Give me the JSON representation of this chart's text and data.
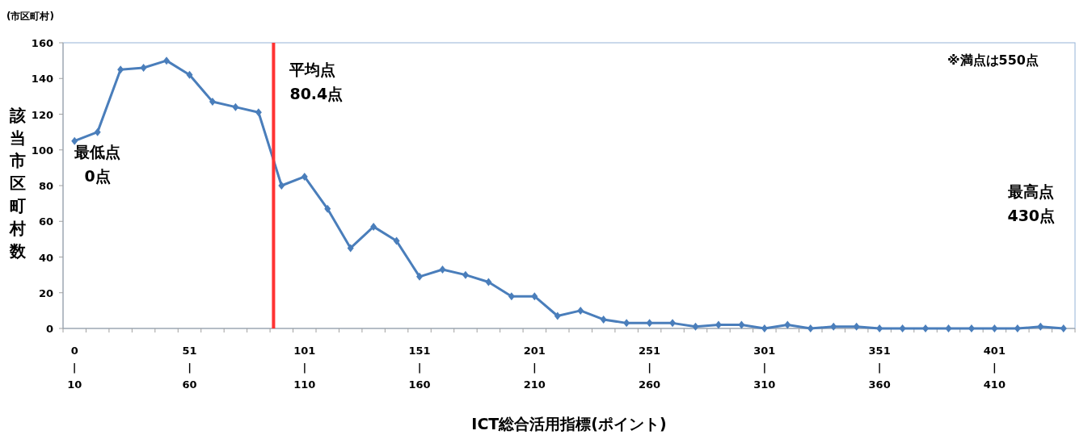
{
  "chart_data": {
    "type": "line",
    "categories": [
      "0\n|\n10",
      null,
      null,
      null,
      null,
      "51\n|\n60",
      null,
      null,
      null,
      null,
      "101\n|\n110",
      null,
      null,
      null,
      null,
      "151\n|\n160",
      null,
      null,
      null,
      null,
      "201\n|\n210",
      null,
      null,
      null,
      null,
      "251\n|\n260",
      null,
      null,
      null,
      null,
      "301\n|\n310",
      null,
      null,
      null,
      null,
      "351\n|\n360",
      null,
      null,
      null,
      null,
      "401\n|\n410",
      null,
      null,
      null
    ],
    "series": [
      {
        "color": "#4a7ebb",
        "values": [
          105,
          110,
          145,
          146,
          150,
          142,
          127,
          124,
          121,
          80,
          85,
          67,
          45,
          57,
          49,
          29,
          33,
          30,
          26,
          18,
          18,
          7,
          10,
          5,
          3,
          3,
          3,
          1,
          2,
          2,
          0,
          2,
          0,
          1,
          1,
          0,
          0,
          0,
          0,
          0,
          0,
          0,
          1,
          0
        ]
      }
    ],
    "ylim": [
      0,
      160
    ],
    "yticks": [
      0,
      20,
      40,
      60,
      80,
      100,
      120,
      140,
      160
    ],
    "xlabel": "ICT総合活用指標(ポイント)",
    "ylabel": "該当市区町村数",
    "annotations": [
      "(市区町村)",
      "※満点は550点",
      "最低点\n0点",
      "最高点\n430点",
      "平均点\n80.4点"
    ],
    "marker": "diamond",
    "grid": false
  }
}
